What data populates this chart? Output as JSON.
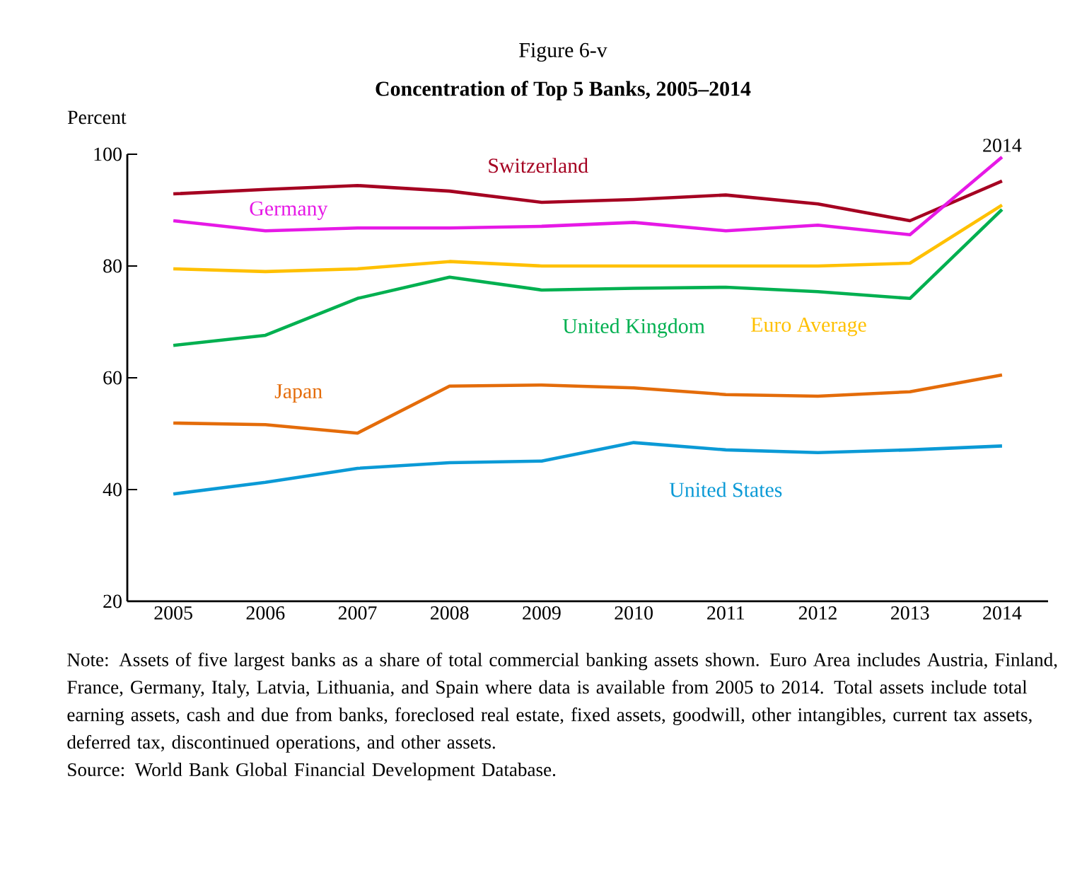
{
  "chart_data": {
    "type": "line",
    "title": "Figure 6-v",
    "subtitle": "Concentration of Top 5 Banks, 2005–2014",
    "ylabel": "Percent",
    "categories": [
      "2005",
      "2006",
      "2007",
      "2008",
      "2009",
      "2010",
      "2011",
      "2012",
      "2013",
      "2014"
    ],
    "ylim": [
      20,
      100
    ],
    "yticks": [
      20,
      40,
      60,
      80,
      100
    ],
    "grid": false,
    "legend": false,
    "marker": "none",
    "line_style": "solid",
    "series": [
      {
        "name": "Switzerland",
        "color": "#a50021",
        "values": [
          92.9,
          93.7,
          94.4,
          93.4,
          91.4,
          91.9,
          92.7,
          91.1,
          88.1,
          95.2
        ]
      },
      {
        "name": "Germany",
        "color": "#e619e6",
        "values": [
          88.1,
          86.3,
          86.8,
          86.8,
          87.1,
          87.8,
          86.3,
          87.3,
          85.6,
          99.5
        ]
      },
      {
        "name": "Euro Average",
        "color": "#ffc000",
        "values": [
          79.5,
          79.0,
          79.5,
          80.8,
          80.0,
          80.0,
          80.0,
          80.0,
          80.5,
          90.9
        ]
      },
      {
        "name": "United Kingdom",
        "color": "#00b050",
        "values": [
          65.8,
          67.6,
          74.2,
          78.0,
          75.7,
          76.0,
          76.2,
          75.4,
          74.2,
          90.1
        ]
      },
      {
        "name": "Japan",
        "color": "#e46c0a",
        "values": [
          51.9,
          51.6,
          50.1,
          58.5,
          58.7,
          58.2,
          57.0,
          56.7,
          57.5,
          60.5
        ]
      },
      {
        "name": "United States",
        "color": "#0b9ad6",
        "values": [
          39.2,
          41.3,
          43.8,
          44.8,
          45.1,
          48.4,
          47.1,
          46.6,
          47.1,
          47.8
        ]
      }
    ],
    "annotations": [
      {
        "text": "2014",
        "x": "2014",
        "y": 99.5
      },
      "Note: Assets of five largest banks as a share of total commercial banking assets shown. Euro Area includes Austria, Finland, France, Germany, Italy, Latvia, Lithuania, and Spain where data is available from 2005 to 2014. Total assets include total earning assets, cash and due from banks, foreclosed real estate, fixed assets, goodwill, other intangibles, current tax assets, deferred tax, discontinued operations, and other assets.",
      "Source: World Bank Global Financial Development Database."
    ]
  }
}
